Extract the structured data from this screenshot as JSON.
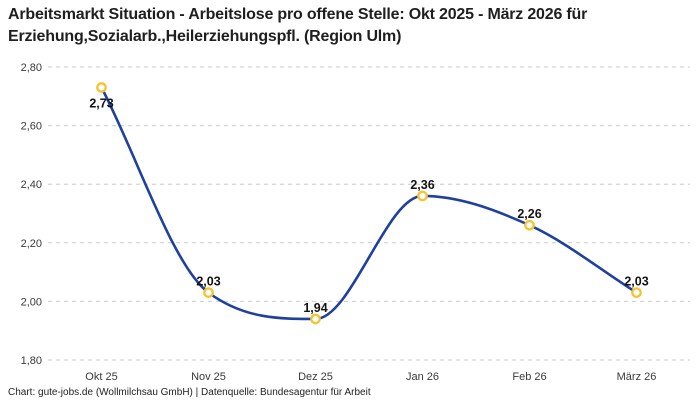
{
  "title": {
    "line1": "Arbeitsmarkt Situation - Arbeitslose pro offene Stelle: Okt 2025 - März 2026 für",
    "line2": "Erziehung,Sozialarb.,Heilerziehungspfl. (Region Ulm)",
    "full": "Arbeitsmarkt Situation - Arbeitslose pro offene Stelle: Okt 2025 - März 2026 für Erziehung,Sozialarb.,Heilerziehungspfl. (Region Ulm)"
  },
  "footer": {
    "source_line": "Chart: gute-jobs.de (Wollmilchsau GmbH) | Datenquelle: Bundesagentur für Arbeit"
  },
  "chart_data": {
    "type": "line",
    "title": "Arbeitsmarkt Situation - Arbeitslose pro offene Stelle: Okt 2025 - März 2026 für Erziehung,Sozialarb.,Heilerziehungspfl. (Region Ulm)",
    "categories": [
      "Okt 25",
      "Nov 25",
      "Dez 25",
      "Jan 26",
      "Feb 26",
      "März 26"
    ],
    "values": [
      2.73,
      2.03,
      1.94,
      2.36,
      2.26,
      2.03
    ],
    "value_labels": [
      "2,73",
      "2,03",
      "1,94",
      "2,36",
      "2,26",
      "2,03"
    ],
    "label_positions": [
      "below",
      "above",
      "above",
      "above",
      "above",
      "above"
    ],
    "xlabel": "",
    "ylabel": "",
    "ylim": [
      1.8,
      2.8
    ],
    "yticks": [
      2.8,
      2.6,
      2.4,
      2.2,
      2.0,
      1.8
    ],
    "ytick_labels": [
      "2,80",
      "2,60",
      "2,40",
      "2,20",
      "2,00",
      "1,80"
    ],
    "grid": "horizontal-dashed",
    "legend": "none",
    "interpolation": "monotone-cubic",
    "colors": {
      "line": "#20409F",
      "marker_stroke": "#F6C330",
      "marker_fill": "#FFFFFF",
      "gridline": "#CBCBCB",
      "tick_text": "#3A3A3A",
      "data_label": "#141414",
      "title_text": "#1F1F1F"
    }
  }
}
